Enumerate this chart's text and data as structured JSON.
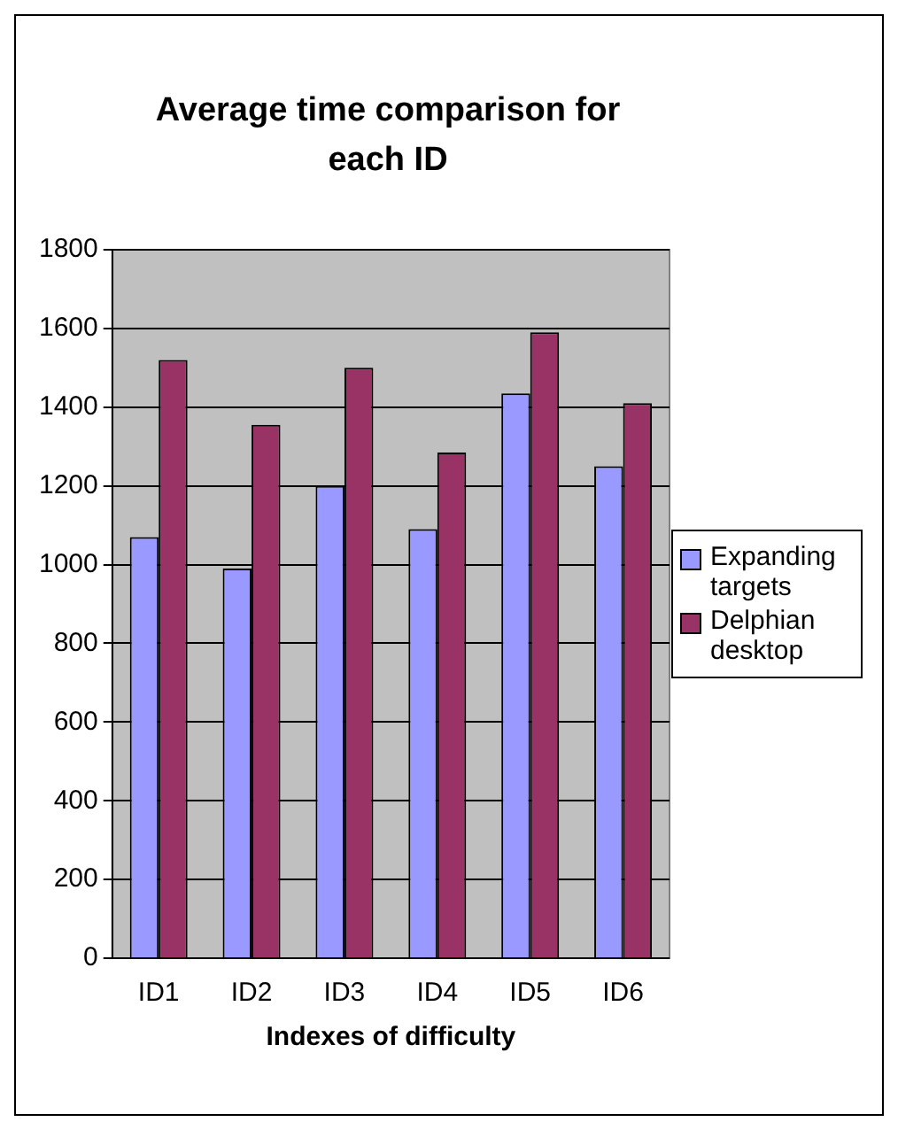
{
  "chart_data": {
    "type": "bar",
    "title": "Average time comparison for each ID",
    "xlabel": "Indexes of difficulty",
    "categories": [
      "ID1",
      "ID2",
      "ID3",
      "ID4",
      "ID5",
      "ID6"
    ],
    "series": [
      {
        "name": "Expanding targets",
        "color": "#9999ff",
        "values": [
          1070,
          990,
          1200,
          1090,
          1435,
          1250
        ]
      },
      {
        "name": "Delphian desktop",
        "color": "#993366",
        "values": [
          1520,
          1355,
          1500,
          1285,
          1590,
          1410
        ]
      }
    ],
    "ylim": [
      0,
      1800
    ],
    "yticks": [
      0,
      200,
      400,
      600,
      800,
      1000,
      1200,
      1400,
      1600,
      1800
    ],
    "grid": "y",
    "legend": "right"
  }
}
